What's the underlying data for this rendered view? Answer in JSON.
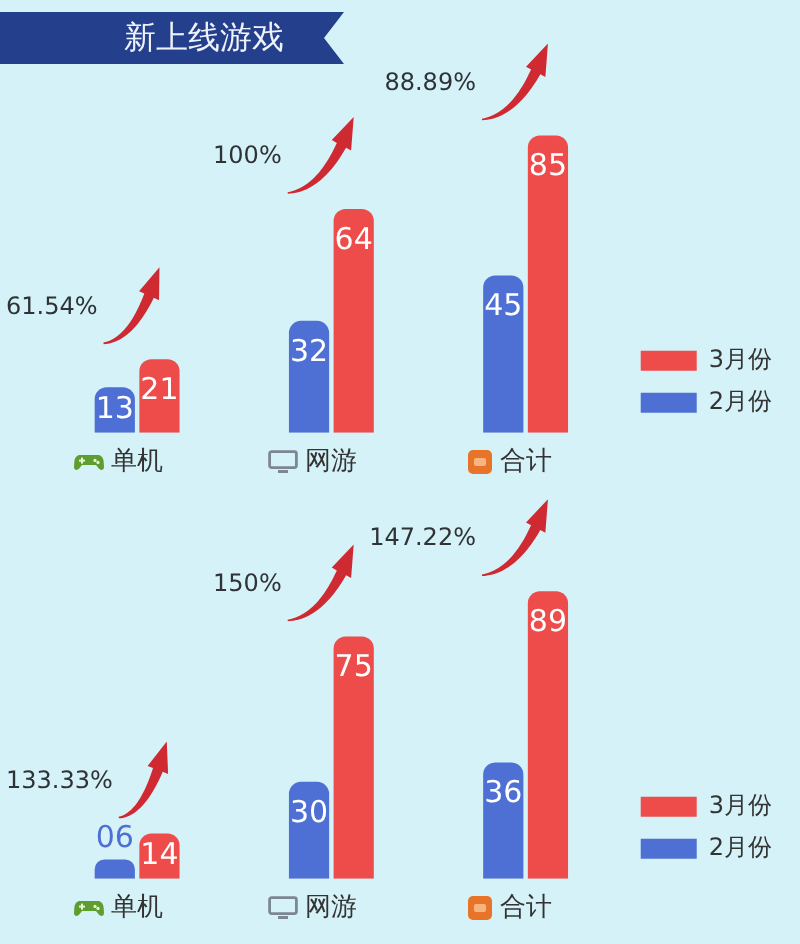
{
  "chart_data": [
    {
      "type": "bar",
      "title": "新上线游戏",
      "categories": [
        "单机",
        "网游",
        "合计"
      ],
      "series": [
        {
          "name": "2月份",
          "color": "#4e6fd3",
          "values": [
            13,
            32,
            45
          ],
          "value_labels": [
            "13",
            "32",
            "45"
          ]
        },
        {
          "name": "3月份",
          "color": "#ee4b4b",
          "values": [
            21,
            64,
            85
          ],
          "value_labels": [
            "21",
            "64",
            "85"
          ]
        }
      ],
      "annotations": [
        "61.54%",
        "100%",
        "88.89%"
      ],
      "legend": "bottom right",
      "tick_labels": "x"
    },
    {
      "type": "bar",
      "categories": [
        "单机",
        "网游",
        "合计"
      ],
      "series": [
        {
          "name": "2月份",
          "color": "#4e6fd3",
          "values": [
            6,
            30,
            36
          ],
          "value_labels": [
            "06",
            "30",
            "36"
          ]
        },
        {
          "name": "3月份",
          "color": "#ee4b4b",
          "values": [
            14,
            75,
            89
          ],
          "value_labels": [
            "14",
            "75",
            "89"
          ]
        }
      ],
      "annotations": [
        "133.33%",
        "150%",
        "147.22%"
      ],
      "legend": "bottom right",
      "tick_labels": "x"
    }
  ]
}
